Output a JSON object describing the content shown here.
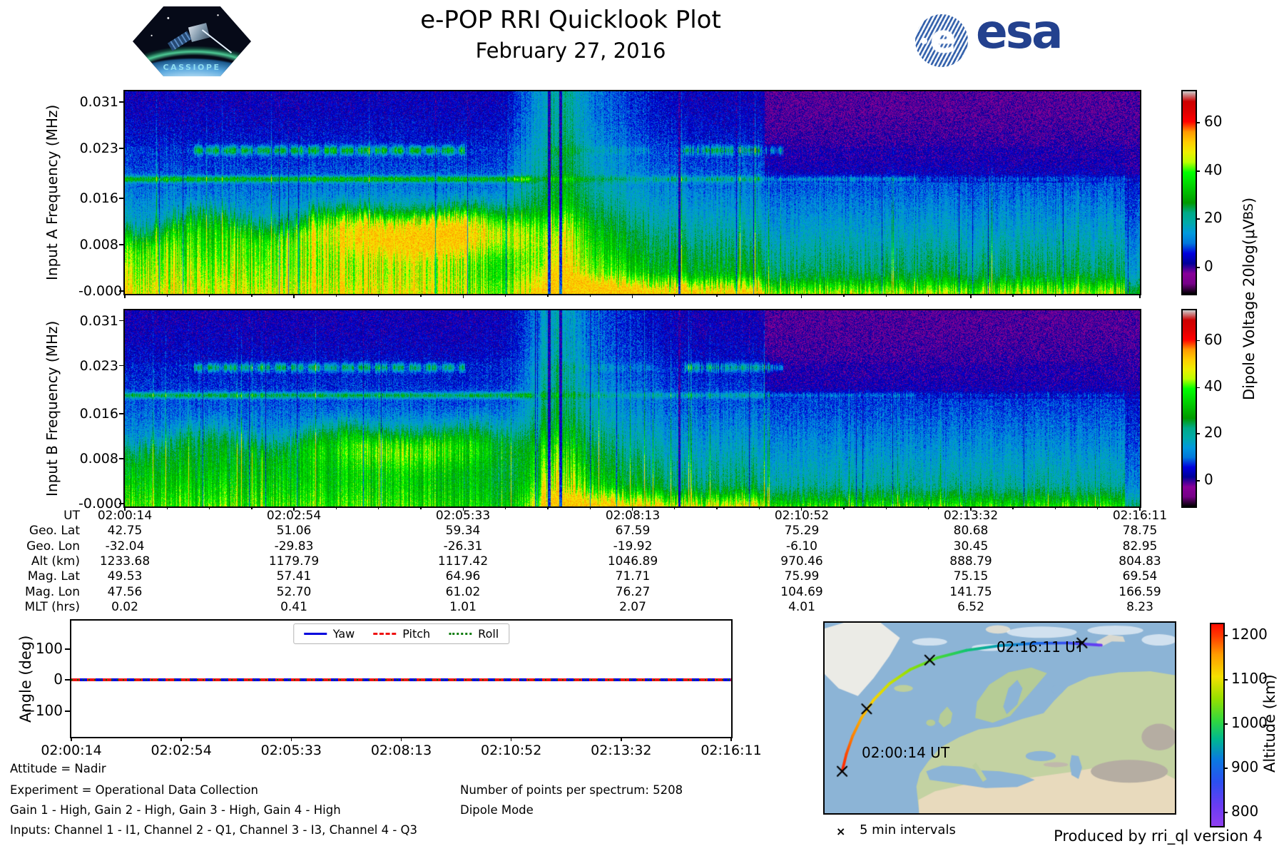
{
  "header": {
    "title": "e-POP RRI Quicklook Plot",
    "date": "February 27, 2016",
    "cassiope_label": "CASSIOPE",
    "esa_e": "e",
    "esa_label": "esa"
  },
  "colors": {
    "yaw": "#0000dd",
    "pitch": "#ee1111",
    "roll": "#0a7a0a",
    "esa_blue": "#23418e",
    "ocean": "#8cb4d6",
    "land_green": "#c3d2a2",
    "land_tan": "#e8dabd",
    "ice": "#ebebe6",
    "axis": "#000000"
  },
  "chart_data": [
    {
      "type": "heatmap",
      "id": "spectrogram_a",
      "ylabel": "Input A Frequency (MHz)",
      "yticks": [
        "0.031",
        "0.023",
        "0.016",
        "0.008",
        "-0.000"
      ],
      "x_range": [
        "02:00:14",
        "02:16:11"
      ],
      "colormap": "nipy_spectral",
      "value_range": [
        -11,
        73
      ],
      "fmax_mhz": 0.0317,
      "colorbar": {
        "ticks": [
          "60",
          "40",
          "20",
          "0"
        ],
        "label_pre": "Dipole Voltage 20log(μV",
        "label_sub": "BS",
        "label_post": ")"
      },
      "features": {
        "seed": 11,
        "dim": 1.0,
        "blob_amp": 30,
        "blob_u": 0.3,
        "blob_freq_mhz": 0.0095,
        "wedge_amp": 16,
        "line_freq_mhz": 0.018,
        "band_freq_mhz": 0.0225,
        "dark_cols": [
          0.418,
          0.429,
          0.546
        ],
        "cap": 52
      }
    },
    {
      "type": "heatmap",
      "id": "spectrogram_b",
      "ylabel": "Input B Frequency (MHz)",
      "yticks": [
        "0.031",
        "0.023",
        "0.016",
        "0.008",
        "-0.000"
      ],
      "x_range": [
        "02:00:14",
        "02:16:11"
      ],
      "colormap": "nipy_spectral",
      "value_range": [
        -11,
        73
      ],
      "fmax_mhz": 0.0317,
      "colorbar": {
        "ticks": [
          "60",
          "40",
          "20",
          "0"
        ]
      },
      "features": {
        "seed": 23,
        "dim": 0.82,
        "blob_amp": 18,
        "blob_u": 0.285,
        "blob_freq_mhz": 0.0095,
        "wedge_amp": 12,
        "line_freq_mhz": 0.018,
        "band_freq_mhz": 0.0225,
        "dark_cols": [
          0.418,
          0.429,
          0.546
        ],
        "cap": 52
      }
    },
    {
      "type": "table",
      "id": "ephemeris",
      "rows": [
        {
          "label": "UT",
          "values": [
            "02:00:14",
            "02:02:54",
            "02:05:33",
            "02:08:13",
            "02:10:52",
            "02:13:32",
            "02:16:11"
          ]
        },
        {
          "label": "Geo. Lat",
          "values": [
            "42.75",
            "51.06",
            "59.34",
            "67.59",
            "75.29",
            "80.68",
            "78.75"
          ]
        },
        {
          "label": "Geo. Lon",
          "values": [
            "-32.04",
            "-29.83",
            "-26.31",
            "-19.92",
            "-6.10",
            "30.45",
            "82.95"
          ]
        },
        {
          "label": "Alt (km)",
          "values": [
            "1233.68",
            "1179.79",
            "1117.42",
            "1046.89",
            "970.46",
            "888.79",
            "804.83"
          ]
        },
        {
          "label": "Mag. Lat",
          "values": [
            "49.53",
            "57.41",
            "64.96",
            "71.71",
            "75.99",
            "75.15",
            "69.54"
          ]
        },
        {
          "label": "Mag. Lon",
          "values": [
            "47.56",
            "52.70",
            "61.02",
            "76.27",
            "104.69",
            "141.75",
            "166.59"
          ]
        },
        {
          "label": "MLT (hrs)",
          "values": [
            "0.02",
            "0.41",
            "1.01",
            "2.07",
            "4.01",
            "6.52",
            "8.23"
          ]
        }
      ]
    },
    {
      "type": "line",
      "id": "attitude",
      "ylabel": "Angle (deg)",
      "yticks": [
        "100",
        "0",
        "−100"
      ],
      "ylim": [
        -190,
        190
      ],
      "xticklabels": [
        "02:00:14",
        "02:02:54",
        "02:05:33",
        "02:08:13",
        "02:10:52",
        "02:13:32",
        "02:16:11"
      ],
      "legend_position": "top-center",
      "series": [
        {
          "name": "Yaw",
          "style": "solid",
          "color": "#0000dd",
          "values": [
            0,
            0,
            0,
            0,
            0,
            0,
            0
          ]
        },
        {
          "name": "Pitch",
          "style": "dashed",
          "color": "#ee1111",
          "values": [
            0,
            0,
            0,
            0,
            0,
            0,
            0
          ]
        },
        {
          "name": "Roll",
          "style": "dotted",
          "color": "#0a7a0a",
          "values": [
            0,
            0,
            0,
            0,
            0,
            0,
            0
          ]
        }
      ]
    },
    {
      "type": "map",
      "id": "ground_track",
      "start_label": "02:00:14 UT",
      "end_label": "02:16:11 UT",
      "marker_glyph": "×",
      "marker_legend": "5 min intervals",
      "colorbar": {
        "label": "Altitude (km)",
        "ticks": [
          "1200",
          "1100",
          "1000",
          "900",
          "800"
        ],
        "range": [
          785,
          1245
        ],
        "colormap": "rainbow"
      },
      "track": {
        "points": [
          [
            0.05,
            0.78
          ],
          [
            0.062,
            0.69
          ],
          [
            0.08,
            0.595
          ],
          [
            0.105,
            0.5
          ],
          [
            0.14,
            0.405
          ],
          [
            0.185,
            0.32
          ],
          [
            0.245,
            0.245
          ],
          [
            0.32,
            0.185
          ],
          [
            0.405,
            0.145
          ],
          [
            0.5,
            0.12
          ],
          [
            0.6,
            0.108
          ],
          [
            0.695,
            0.106
          ],
          [
            0.79,
            0.118
          ]
        ],
        "altitudes": [
          1234,
          1212,
          1188,
          1162,
          1134,
          1104,
          1071,
          1036,
          999,
          960,
          918,
          874,
          828
        ],
        "markers": [
          [
            0.05,
            0.78
          ],
          [
            0.12,
            0.452
          ],
          [
            0.3,
            0.196
          ],
          [
            0.735,
            0.106
          ]
        ]
      }
    }
  ],
  "footer": {
    "attitude": "Attitude = Nadir",
    "experiment": "Experiment = Operational Data Collection",
    "gains": "Gain 1 - High, Gain 2 - High, Gain 3 - High, Gain 4 - High",
    "inputs": "Inputs: Channel 1 - I1, Channel 2 - Q1, Channel 3 - I3, Channel 4 - Q3",
    "points": "Number of points per spectrum: 5208",
    "mode": "Dipole Mode",
    "produced": "Produced by rri_ql version 4"
  }
}
